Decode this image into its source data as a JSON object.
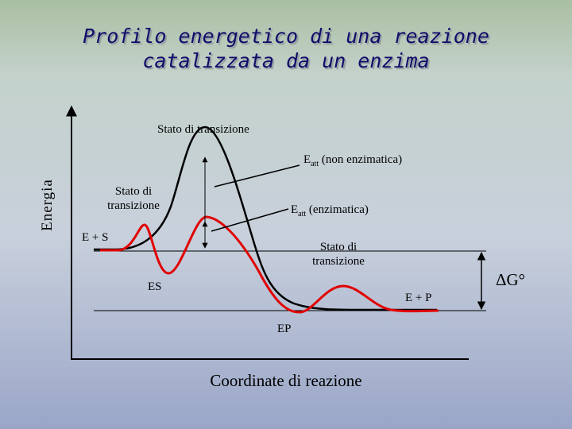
{
  "title": {
    "line1": "Profilo energetico di una reazione",
    "line2": "catalizzata da un enzima"
  },
  "axes": {
    "y_label": "Energia",
    "x_label": "Coordinate di reazione"
  },
  "labels": {
    "transition_top": "Stato di transizione",
    "eatt_non_main": "E",
    "eatt_non_sub": "att",
    "eatt_non_rest": " (non enzimatica)",
    "transition_left_1": "Stato di",
    "transition_left_2": "transizione",
    "eatt_enz_main": "E",
    "eatt_enz_sub": "att",
    "eatt_enz_rest": " (enzimatica)",
    "e_plus_s": "E + S",
    "transition_right_1": "Stato di",
    "transition_right_2": "transizione",
    "es": "ES",
    "e_plus_p": "E + P",
    "ep": "EP",
    "delta_g": "ΔG°"
  },
  "colors": {
    "uncatalyzed_curve": "#000000",
    "catalyzed_curve": "#e00000",
    "title": "#100b6a"
  }
}
